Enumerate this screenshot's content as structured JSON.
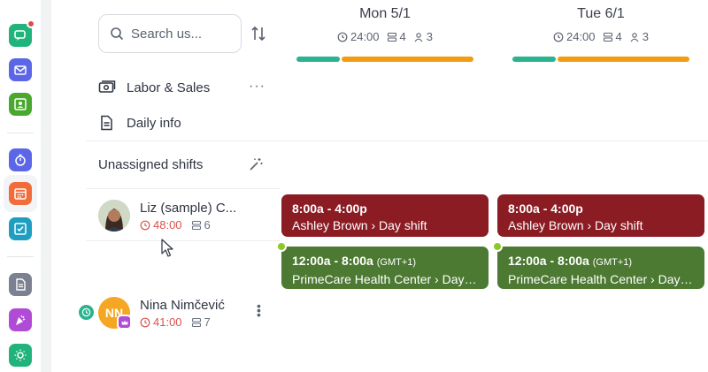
{
  "search": {
    "placeholder": "Search us..."
  },
  "rail": {
    "items": [
      {
        "icon": "chat-icon",
        "color": "#21b37c",
        "badge": true
      },
      {
        "icon": "mail-icon",
        "color": "#5b67e6"
      },
      {
        "icon": "contact-card-icon",
        "color": "#4aa82f"
      },
      {
        "icon": "stopwatch-icon",
        "color": "#5b67e6"
      },
      {
        "icon": "calendar-icon",
        "color": "#f26b3a",
        "active": true
      },
      {
        "icon": "checklist-icon",
        "color": "#1f9ec1"
      },
      {
        "icon": "document-icon",
        "color": "#6b7280"
      },
      {
        "icon": "party-icon",
        "color": "#b04bd6"
      },
      {
        "icon": "sun-icon",
        "color": "#21b37c"
      }
    ]
  },
  "days": [
    {
      "title": "Mon 5/1",
      "hours": "24:00",
      "shifts": "4",
      "people": "3",
      "progress": [
        0.25,
        0.75
      ]
    },
    {
      "title": "Tue 6/1",
      "hours": "24:00",
      "shifts": "4",
      "people": "3",
      "progress": [
        0.25,
        0.75
      ]
    }
  ],
  "colors": {
    "progress_a": "#2bb38f",
    "progress_b": "#f39c12",
    "shift_red": "#8b1c24",
    "shift_green": "#4c7a32",
    "hours_red": "#d9534f"
  },
  "rows": {
    "labor": "Labor & Sales",
    "daily": "Daily info",
    "unassigned": "Unassigned shifts"
  },
  "employees": [
    {
      "name": "Liz (sample) C...",
      "hours": "48:00",
      "shifts": "6"
    },
    {
      "name": "Nina Nimčević",
      "initials": "NN",
      "hours": "41:00",
      "shifts": "7"
    }
  ],
  "shifts": {
    "mon_red": {
      "time": "8:00a - 4:00p",
      "loc": "Ashley Brown › Day shift"
    },
    "tue_red": {
      "time": "8:00a - 4:00p",
      "loc": "Ashley Brown › Day shift"
    },
    "mon_green": {
      "time": "12:00a - 8:00a",
      "tz": "(GMT+1)",
      "loc": "PrimeCare Health Center › Day ..."
    },
    "tue_green": {
      "time": "12:00a - 8:00a",
      "tz": "(GMT+1)",
      "loc": "PrimeCare Health Center › Day ..."
    }
  }
}
